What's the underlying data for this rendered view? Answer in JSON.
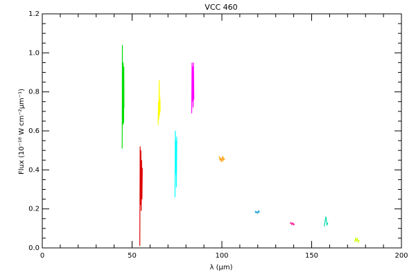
{
  "chart_data": {
    "type": "line",
    "title": "VCC 460",
    "xlabel": "λ (μm)",
    "ylabel": "Flux (10⁻¹⁸ W cm⁻²μm⁻¹)",
    "xlim": [
      0,
      200
    ],
    "ylim": [
      0,
      1.2
    ],
    "x_ticks": [
      0,
      50,
      100,
      150,
      200
    ],
    "y_ticks": [
      0.0,
      0.2,
      0.4,
      0.6,
      0.8,
      1.0,
      1.2
    ],
    "x_tick_labels": [
      "0",
      "50",
      "100",
      "150",
      "200"
    ],
    "y_tick_labels": [
      "0.0",
      "0.2",
      "0.4",
      "0.6",
      "0.8",
      "1.0",
      "1.2"
    ],
    "grid": false,
    "series": [
      {
        "color": "#00dd00",
        "x": [
          44.5,
          44.6,
          44.7,
          44.8,
          44.9,
          45.0,
          45.1,
          45.2,
          45.3,
          45.4,
          45.5
        ],
        "y": [
          0.51,
          1.04,
          0.65,
          0.85,
          0.63,
          0.95,
          0.66,
          0.8,
          0.64,
          0.93,
          0.72
        ]
      },
      {
        "color": "#dd0000",
        "x": [
          54.3,
          54.5,
          54.7,
          54.9,
          55.1,
          55.3,
          55.5,
          55.7
        ],
        "y": [
          0.01,
          0.52,
          0.22,
          0.5,
          0.19,
          0.45,
          0.25,
          0.41
        ]
      },
      {
        "color": "#ffff00",
        "x": [
          64.5,
          64.7,
          64.9,
          65.1,
          65.3,
          65.5,
          65.7
        ],
        "y": [
          0.63,
          0.75,
          0.66,
          0.86,
          0.68,
          0.77,
          0.7
        ]
      },
      {
        "color": "#00ffff",
        "x": [
          73.9,
          74.1,
          74.3,
          74.5,
          74.7,
          74.9
        ],
        "y": [
          0.26,
          0.6,
          0.38,
          0.55,
          0.31,
          0.57
        ]
      },
      {
        "color": "#ff00ff",
        "x": [
          83.2,
          83.4,
          83.6,
          83.8,
          84.0,
          84.2,
          84.4
        ],
        "y": [
          0.69,
          0.95,
          0.75,
          0.93,
          0.72,
          0.95,
          0.76
        ]
      },
      {
        "color": "#ff9900",
        "x": [
          98.5,
          99.0,
          99.5,
          100.0,
          100.5,
          101.0,
          101.5
        ],
        "y": [
          0.47,
          0.45,
          0.46,
          0.44,
          0.47,
          0.45,
          0.46
        ]
      },
      {
        "color": "#0099cc",
        "x": [
          118.5,
          119.0,
          119.5,
          120.0,
          120.5,
          121.0
        ],
        "y": [
          0.19,
          0.18,
          0.185,
          0.178,
          0.19,
          0.182
        ]
      },
      {
        "color": "#ff0088",
        "x": [
          138.0,
          138.5,
          139.0,
          139.5,
          140.0,
          140.5
        ],
        "y": [
          0.125,
          0.13,
          0.12,
          0.128,
          0.118,
          0.124
        ]
      },
      {
        "color": "#00ddaa",
        "x": [
          157.0,
          157.5,
          158.0,
          158.5,
          159.0
        ],
        "y": [
          0.11,
          0.14,
          0.16,
          0.115,
          0.13
        ]
      },
      {
        "color": "#ccff00",
        "x": [
          174.0,
          174.5,
          175.0,
          175.5,
          176.0,
          176.5
        ],
        "y": [
          0.03,
          0.05,
          0.035,
          0.048,
          0.03,
          0.04
        ]
      }
    ]
  }
}
